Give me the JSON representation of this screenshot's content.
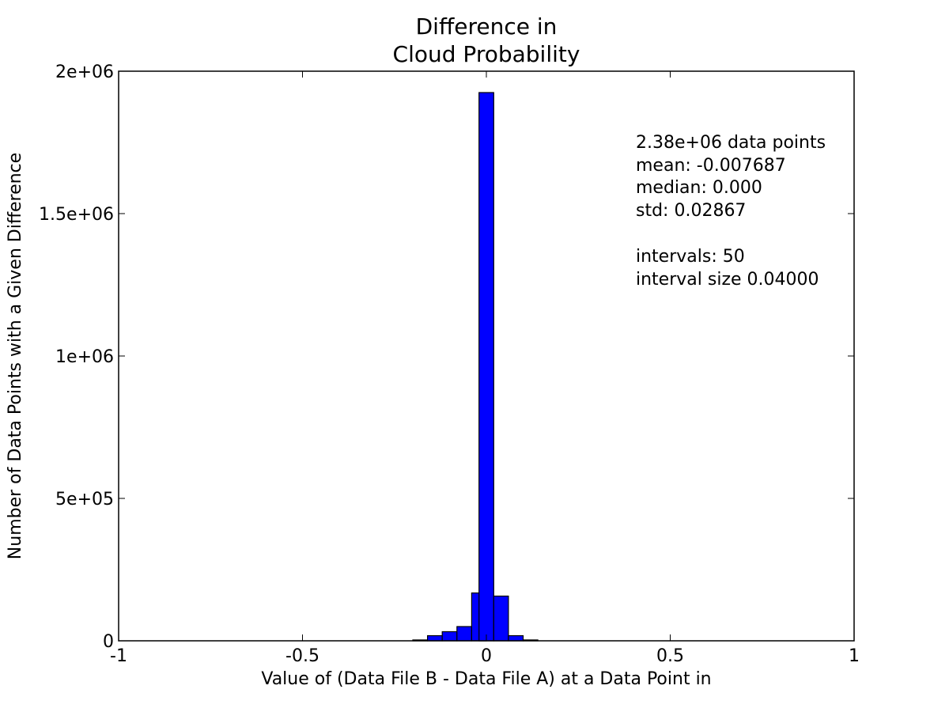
{
  "chart_data": {
    "type": "bar",
    "title_lines": [
      "Difference in",
      "Cloud Probability"
    ],
    "xlabel": "Value of (Data File B - Data File A) at a Data Point in",
    "ylabel": "Number of Data Points with a Given Difference",
    "xlim": [
      -1,
      1
    ],
    "ylim": [
      0,
      2000000
    ],
    "x_ticks": [
      -1,
      -0.5,
      0,
      0.5,
      1
    ],
    "x_tick_labels": [
      "-1",
      "-0.5",
      "0",
      "0.5",
      "1"
    ],
    "y_ticks": [
      0,
      500000,
      1000000,
      1500000,
      2000000
    ],
    "y_tick_labels": [
      "0",
      "5e+05",
      "1e+06",
      "1.5e+06",
      "2e+06"
    ],
    "grid": false,
    "bar_color": "#0000ff",
    "bin_width": 0.04,
    "bins": [
      {
        "left": -0.2,
        "value": 3000
      },
      {
        "left": -0.16,
        "value": 18000
      },
      {
        "left": -0.12,
        "value": 32000
      },
      {
        "left": -0.08,
        "value": 50000
      },
      {
        "left": -0.04,
        "value": 168000
      },
      {
        "left": -0.02,
        "value": 1925000
      },
      {
        "left": 0.02,
        "value": 157000
      },
      {
        "left": 0.06,
        "value": 18000
      },
      {
        "left": 0.1,
        "value": 3000
      }
    ],
    "stats_lines": [
      "2.38e+06 data points",
      "mean: -0.007687",
      "median: 0.000",
      "std: 0.02867",
      "",
      "intervals: 50",
      "interval size 0.04000"
    ]
  }
}
